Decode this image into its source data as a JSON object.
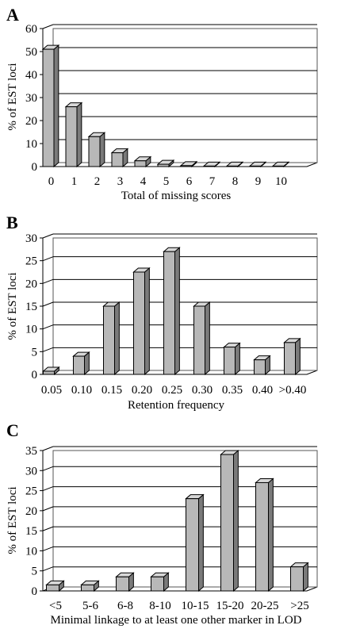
{
  "chart_data": [
    {
      "type": "bar",
      "panel": "A",
      "categories": [
        "0",
        "1",
        "2",
        "3",
        "4",
        "5",
        "6",
        "7",
        "8",
        "9",
        "10"
      ],
      "values": [
        51,
        26,
        13,
        6,
        2.5,
        1,
        0.4,
        0.2,
        0.2,
        0.2,
        0.2
      ],
      "yticks": [
        "0",
        "10",
        "20",
        "30",
        "40",
        "50",
        "60"
      ],
      "xlabel": "Total of missing scores",
      "ylabel": "% of EST loci",
      "ylim": [
        0,
        60
      ],
      "grid": true
    },
    {
      "type": "bar",
      "panel": "B",
      "categories": [
        "0.05",
        "0.10",
        "0.15",
        "0.20",
        "0.25",
        "0.30",
        "0.35",
        "0.40",
        ">0.40"
      ],
      "values": [
        0.7,
        4,
        15,
        22.5,
        27,
        15,
        6,
        3.2,
        7
      ],
      "yticks": [
        "0",
        "5",
        "10",
        "15",
        "20",
        "25",
        "30"
      ],
      "xlabel": "Retention frequency",
      "ylabel": "% of EST loci",
      "ylim": [
        0,
        30
      ],
      "grid": true
    },
    {
      "type": "bar",
      "panel": "C",
      "categories": [
        "<5",
        "5-6",
        "6-8",
        "8-10",
        "10-15",
        "15-20",
        "20-25",
        ">25"
      ],
      "values": [
        1.5,
        1.5,
        3.5,
        3.5,
        23,
        34,
        27,
        6
      ],
      "yticks": [
        "0",
        "5",
        "10",
        "15",
        "20",
        "25",
        "30",
        "35"
      ],
      "xlabel": "Minimal linkage to at least one other marker in LOD",
      "ylabel": "% of EST loci",
      "ylim": [
        0,
        35
      ],
      "grid": true
    }
  ]
}
